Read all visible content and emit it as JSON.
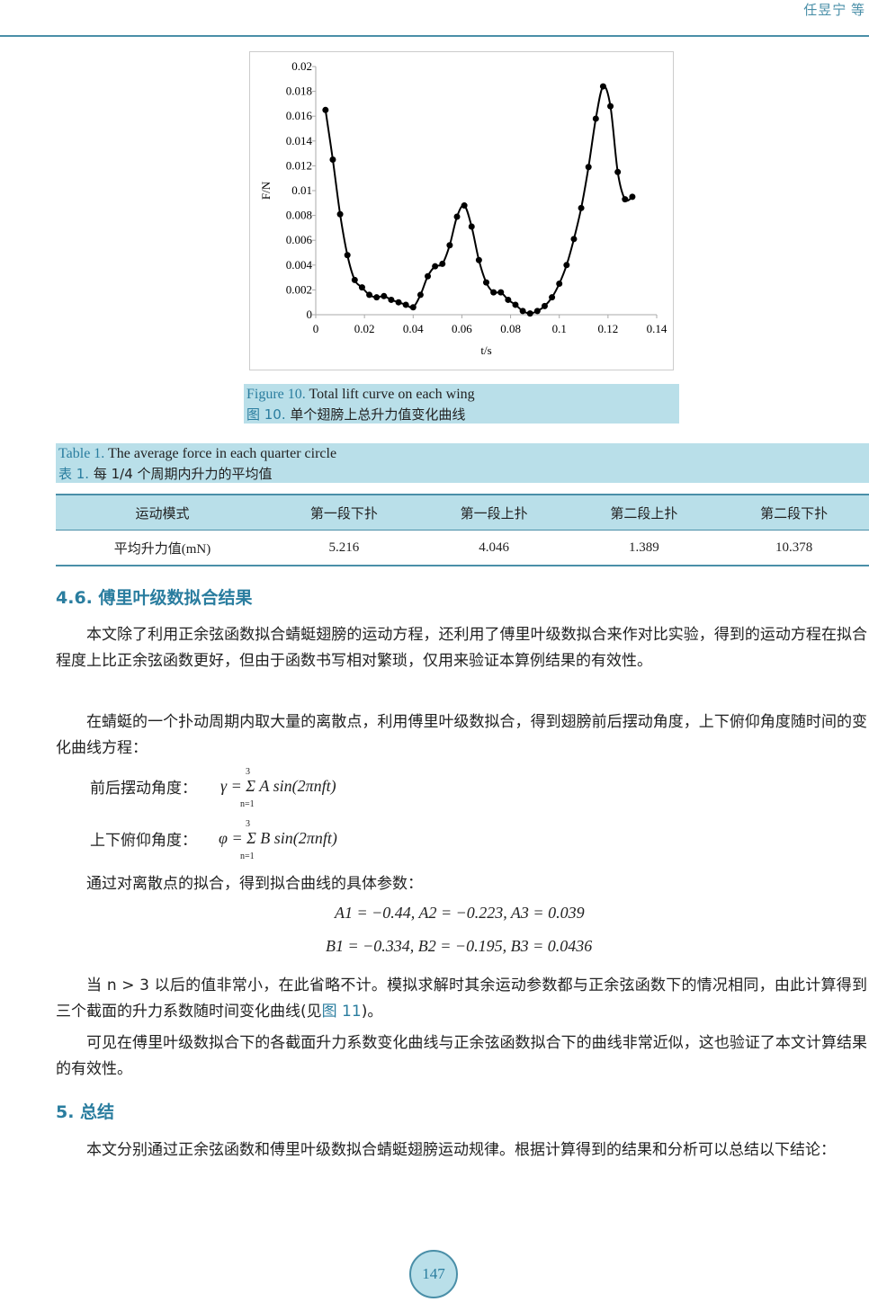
{
  "header": {
    "authors": "任昱宁 等"
  },
  "figure": {
    "label": "Figure 10.",
    "caption_en": "Total lift curve on each wing",
    "label_zh": "图 10.",
    "caption_zh": "单个翅膀上总升力值变化曲线"
  },
  "chart_data": {
    "type": "line",
    "xlabel": "t/s",
    "ylabel": "F/N",
    "xlim": [
      0,
      0.14
    ],
    "ylim": [
      0,
      0.02
    ],
    "xticks": [
      "0",
      "0.02",
      "0.04",
      "0.06",
      "0.08",
      "0.1",
      "0.12",
      "0.14"
    ],
    "yticks": [
      "0",
      "0.002",
      "0.004",
      "0.006",
      "0.008",
      "0.01",
      "0.012",
      "0.014",
      "0.016",
      "0.018",
      "0.02"
    ],
    "grid": false,
    "markers": true,
    "x": [
      0.004,
      0.007,
      0.01,
      0.013,
      0.016,
      0.019,
      0.022,
      0.025,
      0.028,
      0.031,
      0.034,
      0.037,
      0.04,
      0.043,
      0.046,
      0.049,
      0.052,
      0.055,
      0.058,
      0.061,
      0.064,
      0.067,
      0.07,
      0.073,
      0.076,
      0.079,
      0.082,
      0.085,
      0.088,
      0.091,
      0.094,
      0.097,
      0.1,
      0.103,
      0.106,
      0.109,
      0.112,
      0.115,
      0.118,
      0.121,
      0.124,
      0.127,
      0.13
    ],
    "y": [
      0.0165,
      0.0125,
      0.0081,
      0.0048,
      0.0028,
      0.0022,
      0.0016,
      0.0014,
      0.0015,
      0.0012,
      0.001,
      0.0008,
      0.0006,
      0.0016,
      0.0031,
      0.0039,
      0.0041,
      0.0056,
      0.0079,
      0.0088,
      0.0071,
      0.0044,
      0.0026,
      0.0018,
      0.0018,
      0.0012,
      0.0008,
      0.0003,
      0.0001,
      0.0003,
      0.0007,
      0.0014,
      0.0025,
      0.004,
      0.0061,
      0.0086,
      0.0119,
      0.0158,
      0.0184,
      0.0168,
      0.0115,
      0.0093,
      0.0095
    ]
  },
  "table": {
    "label": "Table 1.",
    "caption_en": "The average force in each quarter circle",
    "label_zh": "表 1.",
    "caption_zh": "每 1/4 个周期内升力的平均值",
    "headers": [
      "运动模式",
      "第一段下扑",
      "第一段上扑",
      "第二段上扑",
      "第二段下扑"
    ],
    "row": [
      "平均升力值(mN)",
      "5.216",
      "4.046",
      "1.389",
      "10.378"
    ]
  },
  "section46": {
    "title": "4.6.  傅里叶级数拟合结果",
    "p1": "本文除了利用正余弦函数拟合蜻蜓翅膀的运动方程，还利用了傅里叶级数拟合来作对比实验，得到的运动方程在拟合程度上比正余弦函数更好，但由于函数书写相对繁琐，仅用来验证本算例结果的有效性。",
    "p2": "在蜻蜓的一个扑动周期内取大量的离散点，利用傅里叶级数拟合，得到翅膀前后摆动角度，上下俯仰角度随时间的变化曲线方程：",
    "eq1_label": "前后摆动角度：",
    "eq1": "γ = Σ A sin(2πnft)",
    "eq2_label": "上下俯仰角度：",
    "eq2": "φ = Σ B sin(2πnft)",
    "sum_top": "3",
    "sum_bottom": "n=1",
    "p3": "通过对离散点的拟合，得到拟合曲线的具体参数：",
    "params_a": "A1 = −0.44, A2 = −0.223, A3 = 0.039",
    "params_b": "B1 = −0.334, B2 = −0.195, B3 = 0.0436",
    "p4a": "当 n > 3 以后的值非常小，在此省略不计。模拟求解时其余运动参数都与正余弦函数下的情况相同，由此计算得到三个截面的升力系数随时间变化曲线(见",
    "p4link": "图 11",
    "p4b": ")。",
    "p5": "可见在傅里叶级数拟合下的各截面升力系数变化曲线与正余弦函数拟合下的曲线非常近似，这也验证了本文计算结果的有效性。"
  },
  "section5": {
    "title": "5.  总结",
    "p1": "本文分别通过正余弦函数和傅里叶级数拟合蜻蜓翅膀运动规律。根据计算得到的结果和分析可以总结以下结论："
  },
  "page_number": "147"
}
